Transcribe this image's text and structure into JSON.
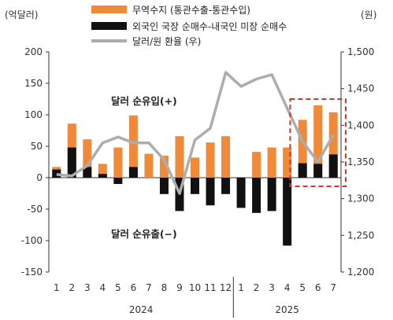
{
  "chart_data": {
    "type": "bar",
    "units": {
      "left": "(억달러)",
      "right": "(원)"
    },
    "legend": [
      {
        "name": "무역수지 (통관수출-통관수입)",
        "kind": "bar",
        "color": "#EE8A3A"
      },
      {
        "name": "외국인 국장 순매수-내국인 미장 순매수",
        "kind": "bar",
        "color": "#111111"
      },
      {
        "name": "달러/원 환율 (우)",
        "kind": "line",
        "color": "#ADADAD"
      }
    ],
    "categories": [
      "1",
      "2",
      "3",
      "4",
      "5",
      "6",
      "7",
      "8",
      "9",
      "10",
      "11",
      "12",
      "1",
      "2",
      "3",
      "4",
      "5",
      "6",
      "7"
    ],
    "year_groups": [
      {
        "label": "2024",
        "start": 0,
        "end": 11
      },
      {
        "label": "2025",
        "start": 12,
        "end": 18
      }
    ],
    "series": [
      {
        "name": "무역수지 (통관수출-통관수입)",
        "axis": "left",
        "values": [
          17,
          86,
          61,
          22,
          48,
          99,
          38,
          35,
          66,
          32,
          56,
          66,
          -18,
          41,
          48,
          48,
          92,
          115,
          104
        ]
      },
      {
        "name": "외국인 국장 순매수-내국인 미장 순매수",
        "axis": "left",
        "values": [
          13,
          48,
          17,
          6,
          -10,
          17,
          0,
          -26,
          -53,
          -26,
          -44,
          -26,
          -48,
          -56,
          -53,
          -108,
          23,
          22,
          37
        ]
      },
      {
        "name": "달러/원 환율 (우)",
        "axis": "right",
        "values": [
          1333,
          1331,
          1345,
          1376,
          1384,
          1376,
          1376,
          1353,
          1307,
          1380,
          1396,
          1472,
          1453,
          1463,
          1469,
          1423,
          1378,
          1350,
          1387
        ]
      }
    ],
    "ylim_left": [
      -150,
      200
    ],
    "yticks_left": [
      -150,
      -100,
      -50,
      0,
      50,
      100,
      150,
      200
    ],
    "ylim_right": [
      1200,
      1500
    ],
    "yticks_right": [
      "1,200",
      "1,250",
      "1,300",
      "1,350",
      "1,400",
      "1,450",
      "1,500"
    ],
    "annotations": [
      "달러 순유입(+)",
      "달러 순유출(−)"
    ],
    "highlight_box": {
      "from": 16,
      "to": 18,
      "color": "#D9342B",
      "style": "dashed"
    }
  }
}
